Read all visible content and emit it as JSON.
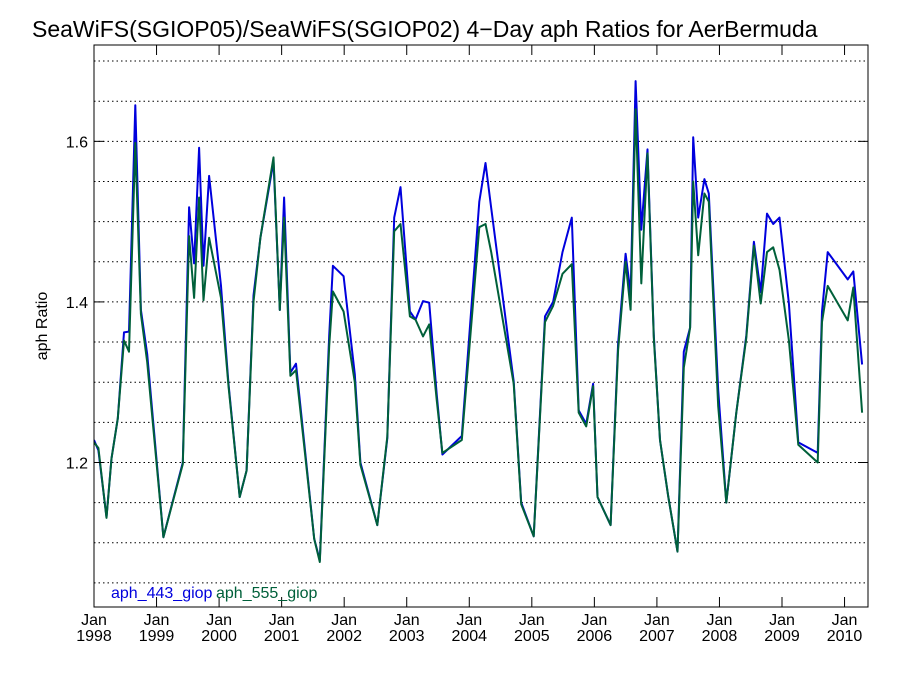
{
  "chart_data": {
    "type": "line",
    "title": "SeaWiFS(SGIOP05)/SeaWiFS(SGIOP02) 4−Day aph Ratios for AerBermuda",
    "ylabel": "aph Ratio",
    "xlabel": "",
    "xlim": [
      1998.0,
      2010.375
    ],
    "ylim": [
      1.02,
      1.72
    ],
    "y_ticks": [
      1.2,
      1.4,
      1.6
    ],
    "y_tick_labels": [
      "1.2",
      "1.4",
      "1.6"
    ],
    "y_grid": [
      1.05,
      1.1,
      1.15,
      1.2,
      1.25,
      1.3,
      1.35,
      1.4,
      1.45,
      1.5,
      1.55,
      1.6,
      1.65,
      1.7
    ],
    "x_ticks": [
      {
        "x": 1998,
        "month": "Jan",
        "year": "1998"
      },
      {
        "x": 1999,
        "month": "Jan",
        "year": "1999"
      },
      {
        "x": 2000,
        "month": "Jan",
        "year": "2000"
      },
      {
        "x": 2001,
        "month": "Jan",
        "year": "2001"
      },
      {
        "x": 2002,
        "month": "Jan",
        "year": "2002"
      },
      {
        "x": 2003,
        "month": "Jan",
        "year": "2003"
      },
      {
        "x": 2004,
        "month": "Jan",
        "year": "2004"
      },
      {
        "x": 2005,
        "month": "Jan",
        "year": "2005"
      },
      {
        "x": 2006,
        "month": "Jan",
        "year": "2006"
      },
      {
        "x": 2007,
        "month": "Jan",
        "year": "2007"
      },
      {
        "x": 2008,
        "month": "Jan",
        "year": "2008"
      },
      {
        "x": 2009,
        "month": "Jan",
        "year": "2009"
      },
      {
        "x": 2010,
        "month": "Jan",
        "year": "2010"
      }
    ],
    "grid": "horizontal-dotted",
    "legend": "bottom-left",
    "series": [
      {
        "name": "aph_443_giop",
        "color": "#0000dd",
        "points": [
          [
            1998.0,
            1.228
          ],
          [
            1998.07,
            1.215
          ],
          [
            1998.2,
            1.132
          ],
          [
            1998.28,
            1.205
          ],
          [
            1998.38,
            1.255
          ],
          [
            1998.48,
            1.362
          ],
          [
            1998.56,
            1.363
          ],
          [
            1998.66,
            1.645
          ],
          [
            1998.75,
            1.39
          ],
          [
            1998.85,
            1.335
          ],
          [
            1999.11,
            1.107
          ],
          [
            1999.42,
            1.2
          ],
          [
            1999.52,
            1.518
          ],
          [
            1999.6,
            1.448
          ],
          [
            1999.68,
            1.592
          ],
          [
            1999.75,
            1.445
          ],
          [
            1999.84,
            1.557
          ],
          [
            2000.03,
            1.42
          ],
          [
            2000.15,
            1.298
          ],
          [
            2000.33,
            1.157
          ],
          [
            2000.44,
            1.19
          ],
          [
            2000.55,
            1.408
          ],
          [
            2000.66,
            1.48
          ],
          [
            2000.87,
            1.575
          ],
          [
            2000.97,
            1.39
          ],
          [
            2001.04,
            1.53
          ],
          [
            2001.14,
            1.312
          ],
          [
            2001.23,
            1.323
          ],
          [
            2001.52,
            1.105
          ],
          [
            2001.61,
            1.078
          ],
          [
            2001.76,
            1.358
          ],
          [
            2001.82,
            1.445
          ],
          [
            2001.99,
            1.432
          ],
          [
            2002.17,
            1.31
          ],
          [
            2002.26,
            1.2
          ],
          [
            2002.53,
            1.122
          ],
          [
            2002.69,
            1.23
          ],
          [
            2002.8,
            1.505
          ],
          [
            2002.9,
            1.543
          ],
          [
            2003.05,
            1.388
          ],
          [
            2003.14,
            1.378
          ],
          [
            2003.26,
            1.401
          ],
          [
            2003.36,
            1.399
          ],
          [
            2003.48,
            1.285
          ],
          [
            2003.57,
            1.21
          ],
          [
            2003.88,
            1.233
          ],
          [
            2004.16,
            1.525
          ],
          [
            2004.26,
            1.573
          ],
          [
            2004.35,
            1.517
          ],
          [
            2004.71,
            1.301
          ],
          [
            2004.83,
            1.15
          ],
          [
            2005.03,
            1.108
          ],
          [
            2005.21,
            1.382
          ],
          [
            2005.34,
            1.4
          ],
          [
            2005.49,
            1.462
          ],
          [
            2005.64,
            1.505
          ],
          [
            2005.75,
            1.265
          ],
          [
            2005.87,
            1.248
          ],
          [
            2005.98,
            1.298
          ],
          [
            2006.05,
            1.157
          ],
          [
            2006.26,
            1.122
          ],
          [
            2006.38,
            1.348
          ],
          [
            2006.5,
            1.46
          ],
          [
            2006.58,
            1.41
          ],
          [
            2006.66,
            1.675
          ],
          [
            2006.75,
            1.49
          ],
          [
            2006.85,
            1.59
          ],
          [
            2006.95,
            1.358
          ],
          [
            2007.05,
            1.228
          ],
          [
            2007.18,
            1.158
          ],
          [
            2007.33,
            1.089
          ],
          [
            2007.43,
            1.338
          ],
          [
            2007.53,
            1.368
          ],
          [
            2007.58,
            1.605
          ],
          [
            2007.66,
            1.505
          ],
          [
            2007.76,
            1.553
          ],
          [
            2007.83,
            1.535
          ],
          [
            2007.98,
            1.29
          ],
          [
            2008.11,
            1.15
          ],
          [
            2008.27,
            1.262
          ],
          [
            2008.43,
            1.358
          ],
          [
            2008.55,
            1.475
          ],
          [
            2008.66,
            1.412
          ],
          [
            2008.76,
            1.51
          ],
          [
            2008.86,
            1.497
          ],
          [
            2008.96,
            1.505
          ],
          [
            2009.11,
            1.398
          ],
          [
            2009.26,
            1.225
          ],
          [
            2009.57,
            1.212
          ],
          [
            2009.64,
            1.388
          ],
          [
            2009.73,
            1.462
          ],
          [
            2010.05,
            1.428
          ],
          [
            2010.14,
            1.438
          ],
          [
            2010.28,
            1.322
          ]
        ]
      },
      {
        "name": "aph_555_giop",
        "color": "#00603a",
        "points": [
          [
            1998.0,
            1.225
          ],
          [
            1998.07,
            1.218
          ],
          [
            1998.2,
            1.131
          ],
          [
            1998.28,
            1.205
          ],
          [
            1998.38,
            1.255
          ],
          [
            1998.48,
            1.352
          ],
          [
            1998.56,
            1.338
          ],
          [
            1998.66,
            1.598
          ],
          [
            1998.75,
            1.385
          ],
          [
            1998.85,
            1.325
          ],
          [
            1999.11,
            1.107
          ],
          [
            1999.42,
            1.198
          ],
          [
            1999.52,
            1.482
          ],
          [
            1999.6,
            1.405
          ],
          [
            1999.68,
            1.53
          ],
          [
            1999.75,
            1.402
          ],
          [
            1999.84,
            1.48
          ],
          [
            2000.03,
            1.405
          ],
          [
            2000.15,
            1.295
          ],
          [
            2000.33,
            1.157
          ],
          [
            2000.44,
            1.19
          ],
          [
            2000.55,
            1.4
          ],
          [
            2000.66,
            1.48
          ],
          [
            2000.87,
            1.58
          ],
          [
            2000.97,
            1.39
          ],
          [
            2001.04,
            1.505
          ],
          [
            2001.14,
            1.308
          ],
          [
            2001.23,
            1.315
          ],
          [
            2001.52,
            1.105
          ],
          [
            2001.61,
            1.076
          ],
          [
            2001.76,
            1.345
          ],
          [
            2001.82,
            1.413
          ],
          [
            2001.99,
            1.388
          ],
          [
            2002.17,
            1.3
          ],
          [
            2002.26,
            1.197
          ],
          [
            2002.53,
            1.122
          ],
          [
            2002.69,
            1.232
          ],
          [
            2002.8,
            1.488
          ],
          [
            2002.9,
            1.497
          ],
          [
            2003.05,
            1.382
          ],
          [
            2003.14,
            1.378
          ],
          [
            2003.26,
            1.357
          ],
          [
            2003.36,
            1.372
          ],
          [
            2003.48,
            1.278
          ],
          [
            2003.57,
            1.212
          ],
          [
            2003.88,
            1.228
          ],
          [
            2004.16,
            1.493
          ],
          [
            2004.26,
            1.497
          ],
          [
            2004.35,
            1.462
          ],
          [
            2004.71,
            1.298
          ],
          [
            2004.83,
            1.148
          ],
          [
            2005.03,
            1.108
          ],
          [
            2005.21,
            1.375
          ],
          [
            2005.34,
            1.395
          ],
          [
            2005.49,
            1.435
          ],
          [
            2005.64,
            1.447
          ],
          [
            2005.75,
            1.262
          ],
          [
            2005.87,
            1.245
          ],
          [
            2005.98,
            1.295
          ],
          [
            2006.05,
            1.157
          ],
          [
            2006.26,
            1.122
          ],
          [
            2006.38,
            1.34
          ],
          [
            2006.5,
            1.45
          ],
          [
            2006.58,
            1.39
          ],
          [
            2006.66,
            1.64
          ],
          [
            2006.75,
            1.423
          ],
          [
            2006.85,
            1.585
          ],
          [
            2006.95,
            1.355
          ],
          [
            2007.05,
            1.228
          ],
          [
            2007.18,
            1.158
          ],
          [
            2007.33,
            1.089
          ],
          [
            2007.43,
            1.318
          ],
          [
            2007.53,
            1.368
          ],
          [
            2007.58,
            1.55
          ],
          [
            2007.66,
            1.458
          ],
          [
            2007.76,
            1.535
          ],
          [
            2007.83,
            1.525
          ],
          [
            2007.98,
            1.27
          ],
          [
            2008.11,
            1.15
          ],
          [
            2008.27,
            1.262
          ],
          [
            2008.43,
            1.355
          ],
          [
            2008.55,
            1.47
          ],
          [
            2008.66,
            1.398
          ],
          [
            2008.76,
            1.462
          ],
          [
            2008.86,
            1.468
          ],
          [
            2008.96,
            1.44
          ],
          [
            2009.11,
            1.352
          ],
          [
            2009.26,
            1.222
          ],
          [
            2009.57,
            1.2
          ],
          [
            2009.64,
            1.375
          ],
          [
            2009.73,
            1.42
          ],
          [
            2010.05,
            1.377
          ],
          [
            2010.14,
            1.418
          ],
          [
            2010.28,
            1.262
          ]
        ]
      }
    ]
  }
}
